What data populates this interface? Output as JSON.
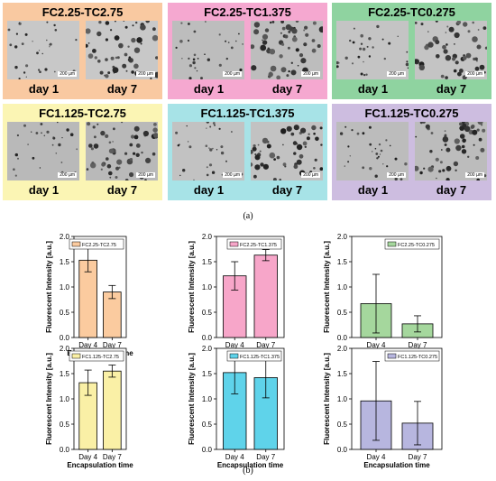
{
  "panel_a": {
    "label": "(a)",
    "scale_bar": "200 µm",
    "cells": [
      {
        "title": "FC2.25-TC2.75",
        "color": "#f9c9a1",
        "day_left": "day 1",
        "day_right": "day 7"
      },
      {
        "title": "FC2.25-TC1.375",
        "color": "#f5a8d0",
        "day_left": "day 1",
        "day_right": "day 7"
      },
      {
        "title": "FC2.25-TC0.275",
        "color": "#8fd3a0",
        "day_left": "day 1",
        "day_right": "day 7"
      },
      {
        "title": "FC1.125-TC2.75",
        "color": "#fbf5b4",
        "day_left": "day 1",
        "day_right": "day 7"
      },
      {
        "title": "FC1.125-TC1.375",
        "color": "#a7e3e7",
        "day_left": "day 1",
        "day_right": "day 7"
      },
      {
        "title": "FC1.125-TC0.275",
        "color": "#cdbde0",
        "day_left": "day 1",
        "day_right": "day 7"
      }
    ]
  },
  "panel_b": {
    "label": "(b)"
  },
  "chart_data": [
    {
      "type": "bar",
      "series_name": "FC2.25-TC2.75",
      "color": "#fbcb9f",
      "categories": [
        "Day 4",
        "Day 7"
      ],
      "values": [
        1.53,
        0.9
      ],
      "errors": [
        0.23,
        0.13
      ],
      "ylabel": "Fluorescent Intensity [a.u.]",
      "xlabel": "Encapsulation time",
      "ylim": [
        0,
        2.0
      ],
      "yticks": [
        "0.0",
        "0.5",
        "1.0",
        "1.5",
        "2.0"
      ],
      "legend": "top-right"
    },
    {
      "type": "bar",
      "series_name": "FC2.25-TC1.375",
      "color": "#f7a6c9",
      "categories": [
        "Day 4",
        "Day 7"
      ],
      "values": [
        1.22,
        1.63
      ],
      "errors": [
        0.28,
        0.11
      ],
      "ylabel": "Fluorescent Intensity [a.u.]",
      "xlabel": "Encapsulation time",
      "ylim": [
        0,
        2.0
      ],
      "yticks": [
        "0.0",
        "0.5",
        "1.0",
        "1.5",
        "2.0"
      ],
      "legend": "top-right"
    },
    {
      "type": "bar",
      "series_name": "FC2.25-TC0.275",
      "color": "#a5d79d",
      "categories": [
        "Day 4",
        "Day 7"
      ],
      "values": [
        0.67,
        0.27
      ],
      "errors": [
        0.58,
        0.16
      ],
      "ylabel": "Fluorescent Intensity [a.u.]",
      "xlabel": "Encapsulation time",
      "ylim": [
        0,
        2.0
      ],
      "yticks": [
        "0.0",
        "0.5",
        "1.0",
        "1.5",
        "2.0"
      ],
      "legend": "top-right"
    },
    {
      "type": "bar",
      "series_name": "FC1.125-TC2.75",
      "color": "#faf0a6",
      "categories": [
        "Day 4",
        "Day 7"
      ],
      "values": [
        1.32,
        1.55
      ],
      "errors": [
        0.25,
        0.12
      ],
      "ylabel": "Fluorescent Intensity [a.u.]",
      "xlabel": "Encapsulation time",
      "ylim": [
        0,
        2.0
      ],
      "yticks": [
        "0.0",
        "0.5",
        "1.0",
        "1.5",
        "2.0"
      ],
      "legend": "top-right"
    },
    {
      "type": "bar",
      "series_name": "FC1.125-TC1.375",
      "color": "#5fd3ea",
      "categories": [
        "Day 4",
        "Day 7"
      ],
      "values": [
        1.52,
        1.42
      ],
      "errors": [
        0.42,
        0.4
      ],
      "ylabel": "Fluorescent Intensity [a.u.]",
      "xlabel": "Encapsulation time",
      "ylim": [
        0,
        2.0
      ],
      "yticks": [
        "0.0",
        "0.5",
        "1.0",
        "1.5",
        "2.0"
      ],
      "legend": "top-right"
    },
    {
      "type": "bar",
      "series_name": "FC1.125-TC0.275",
      "color": "#b7b6df",
      "categories": [
        "Day 4",
        "Day 7"
      ],
      "values": [
        0.96,
        0.52
      ],
      "errors": [
        0.78,
        0.43
      ],
      "ylabel": "Fluorescent Intensity [a.u.]",
      "xlabel": "Encapsulation time",
      "ylim": [
        0,
        2.0
      ],
      "yticks": [
        "0.0",
        "0.5",
        "1.0",
        "1.5",
        "2.0"
      ],
      "legend": "top-right"
    }
  ]
}
